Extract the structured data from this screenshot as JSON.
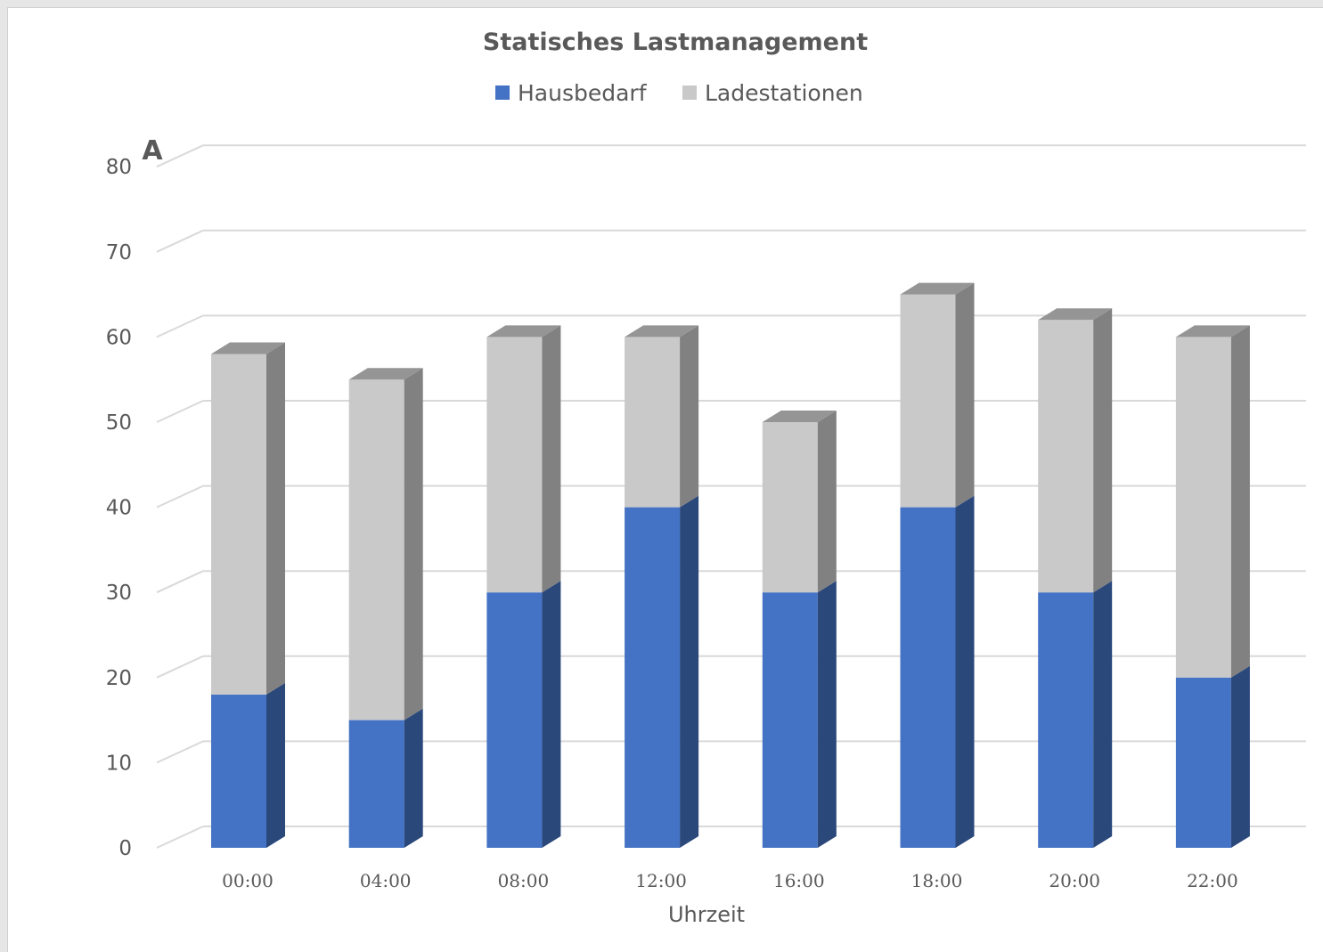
{
  "chart_data": {
    "type": "bar",
    "stacked": true,
    "style": "3d-column",
    "title": "Statisches Lastmanagement",
    "xlabel": "Uhrzeit",
    "ylabel": "A",
    "ylim": [
      0,
      80
    ],
    "yticks": [
      0,
      10,
      20,
      30,
      40,
      50,
      60,
      70,
      80
    ],
    "grid": true,
    "legend_position": "top",
    "categories": [
      "00:00",
      "04:00",
      "08:00",
      "12:00",
      "16:00",
      "18:00",
      "20:00",
      "22:00"
    ],
    "series": [
      {
        "name": "Hausbedarf",
        "color": "#4472c4",
        "values": [
          18,
          15,
          30,
          40,
          30,
          40,
          30,
          20
        ]
      },
      {
        "name": "Ladestationen",
        "color": "#c9c9c9",
        "values": [
          40,
          40,
          30,
          20,
          20,
          25,
          32,
          40
        ]
      }
    ]
  }
}
